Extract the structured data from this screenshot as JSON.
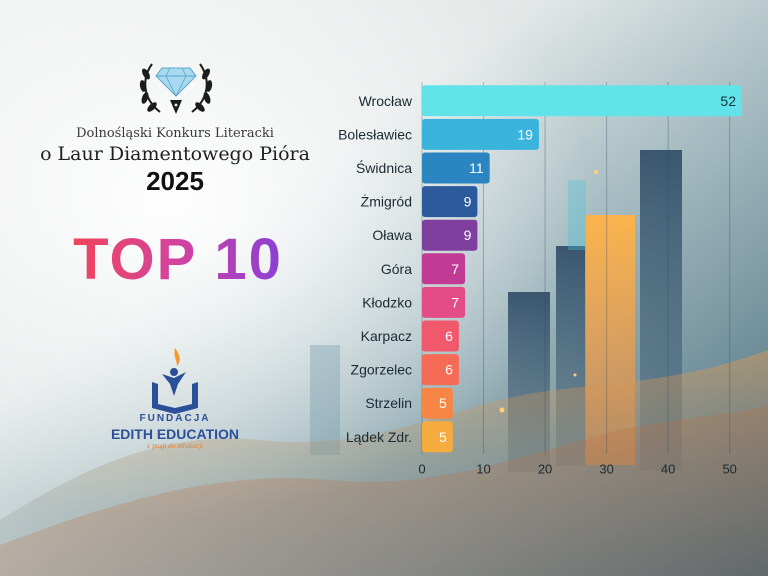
{
  "contest": {
    "line1": "Dolnośląski Konkurs Literacki",
    "line2": "o Laur Diamentowego Pióra",
    "year": "2025",
    "badge": "TOP 10"
  },
  "foundation": {
    "name": "FUNDACJA",
    "brand": "EDITH EDUCATION",
    "tagline": "z pasji do edukacji"
  },
  "icons": [
    "diamond-laurel-logo-icon",
    "edith-education-logo-icon"
  ],
  "colors": {
    "top10_gradient": [
      "#f0455a",
      "#d243a0",
      "#8a3fd6"
    ],
    "brand_blue": "#2c4f9a",
    "brand_orange": "#e07a2a"
  },
  "chart_data": {
    "type": "bar",
    "orientation": "horizontal",
    "categories": [
      "Wrocław",
      "Bolesławiec",
      "Świdnica",
      "Żmigród",
      "Oława",
      "Góra",
      "Kłodzko",
      "Karpacz",
      "Zgorzelec",
      "Strzelin",
      "Lądek Zdr."
    ],
    "values": [
      52,
      19,
      11,
      9,
      9,
      7,
      7,
      6,
      6,
      5,
      5
    ],
    "bar_colors": [
      "#62e3ea",
      "#3ab4dc",
      "#2a85c0",
      "#2c5a9c",
      "#7e3f9e",
      "#c13b94",
      "#e44c86",
      "#f0596c",
      "#f66b55",
      "#f78544",
      "#f5ab3e"
    ],
    "xlim": [
      0,
      52
    ],
    "xticks": [
      0,
      10,
      20,
      30,
      40,
      50
    ],
    "grid": true,
    "data_labels": true,
    "title": "",
    "xlabel": "",
    "ylabel": ""
  }
}
